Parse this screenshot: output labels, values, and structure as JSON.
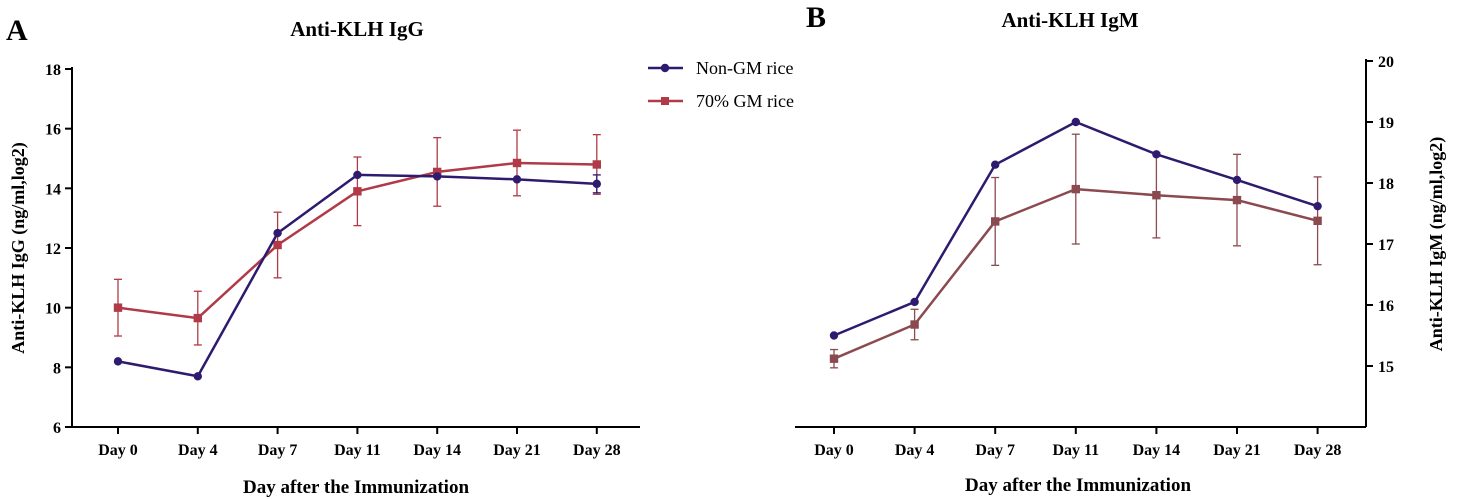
{
  "legend": [
    {
      "label": "Non-GM rice",
      "color": "#2e1a6e",
      "marker": "circle"
    },
    {
      "label": "70% GM rice",
      "color": "#b03a48",
      "marker": "square"
    }
  ],
  "chart_data": [
    {
      "panel": "A",
      "type": "line",
      "title": "Anti-KLH IgG",
      "xlabel": "Day after the Immunization",
      "ylabel": "Anti-KLH IgG  (ng/ml,log2)",
      "categories": [
        "Day 0",
        "Day 4",
        "Day 7",
        "Day 11",
        "Day 14",
        "Day 21",
        "Day 28"
      ],
      "ylim": [
        6,
        18
      ],
      "yticks": [
        6,
        8,
        10,
        12,
        14,
        16,
        18
      ],
      "y_axis_side": "left",
      "series": [
        {
          "name": "Non-GM rice",
          "color": "#2e1a6e",
          "marker": "circle",
          "values": [
            8.2,
            7.7,
            12.5,
            14.45,
            14.4,
            14.3,
            14.15
          ],
          "errors": [
            0,
            0,
            0,
            0,
            0,
            0,
            0.3
          ]
        },
        {
          "name": "70% GM rice",
          "color": "#b03a48",
          "marker": "square",
          "values": [
            10.0,
            9.65,
            12.1,
            13.9,
            14.55,
            14.85,
            14.8
          ],
          "errors": [
            0.95,
            0.9,
            1.1,
            1.15,
            1.15,
            1.1,
            1.0
          ]
        }
      ]
    },
    {
      "panel": "B",
      "type": "line",
      "title": "Anti-KLH IgM",
      "xlabel": "Day after the Immunization",
      "ylabel": "Anti-KLH IgM  (ng/ml,log2)",
      "categories": [
        "Day 0",
        "Day 4",
        "Day 7",
        "Day 11",
        "Day 14",
        "Day 21",
        "Day 28"
      ],
      "ylim": [
        14,
        20
      ],
      "yticks": [
        15,
        16,
        17,
        18,
        19,
        20
      ],
      "y_axis_side": "right",
      "series": [
        {
          "name": "Non-GM rice",
          "color": "#2e1a6e",
          "marker": "circle",
          "values": [
            15.5,
            16.05,
            18.3,
            19.0,
            18.47,
            18.05,
            17.62
          ],
          "errors": [
            0,
            0,
            0,
            0,
            0,
            0,
            0
          ]
        },
        {
          "name": "70% GM rice",
          "color": "#8b4a50",
          "marker": "square",
          "values": [
            15.12,
            15.68,
            17.37,
            17.9,
            17.8,
            17.72,
            17.38
          ],
          "errors": [
            0.15,
            0.25,
            0.72,
            0.9,
            0.7,
            0.75,
            0.72
          ]
        }
      ]
    }
  ]
}
